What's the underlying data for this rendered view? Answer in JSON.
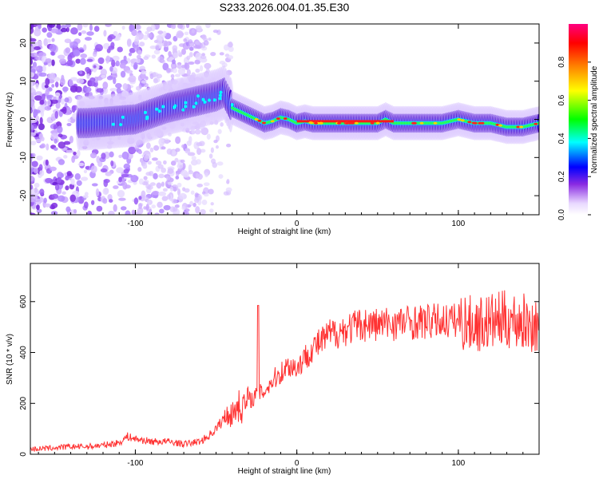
{
  "title": "S233.2026.004.01.35.E30",
  "chart_data": [
    {
      "type": "heatmap",
      "xlabel": "Height of straight line (km)",
      "ylabel": "Frequency (Hz)",
      "xlim": [
        -165,
        150
      ],
      "ylim": [
        -25,
        25
      ],
      "x_ticks": [
        -100,
        0,
        100
      ],
      "y_ticks": [
        -20,
        -10,
        0,
        10,
        20
      ],
      "colorbar": {
        "label": "Normalized spectral amplitude",
        "range": [
          0,
          1
        ],
        "ticks": [
          "0.0",
          "0.2",
          "0.4",
          "0.6",
          "0.8"
        ],
        "ticks_values": [
          0,
          0.2,
          0.4,
          0.6,
          0.8
        ],
        "colors": [
          "#ffffff",
          "#8a2be2",
          "#0000ff",
          "#00ffff",
          "#00ff00",
          "#ffff00",
          "#ff8000",
          "#ff0000",
          "#ff0080"
        ]
      },
      "ridge": {
        "x": [
          -130,
          -115,
          -100,
          -90,
          -80,
          -70,
          -60,
          -50,
          -45,
          -40,
          -35,
          -30,
          -25,
          -20,
          -15,
          -10,
          -5,
          0,
          5,
          10,
          20,
          30,
          40,
          50,
          55,
          60,
          70,
          80,
          90,
          100,
          110,
          120,
          130,
          140,
          150
        ],
        "y": [
          -1,
          -0.5,
          0,
          1.5,
          3,
          4,
          5,
          6,
          7,
          3,
          2,
          1,
          0,
          -1,
          -0.5,
          0.5,
          0,
          -1,
          -0.5,
          -1,
          -1,
          -1,
          -1,
          -1,
          0,
          -1,
          -1,
          -1,
          -1,
          0,
          -1,
          -1,
          -2,
          -2,
          -1
        ]
      }
    },
    {
      "type": "line",
      "xlabel": "Height of straight line (km)",
      "ylabel": "SNR (10 * v/v)",
      "xlim": [
        -165,
        150
      ],
      "ylim": [
        0,
        750
      ],
      "x_ticks": [
        -100,
        0,
        100
      ],
      "y_ticks": [
        0,
        200,
        400,
        600
      ],
      "color": "#ff3333",
      "series": [
        {
          "x": [
            -165,
            -150,
            -140,
            -130,
            -120,
            -110,
            -105,
            -100,
            -90,
            -80,
            -70,
            -60,
            -55,
            -50,
            -45,
            -42,
            -40,
            -37,
            -35,
            -30,
            -25,
            -20,
            -15,
            -10,
            -5,
            0,
            5,
            10,
            15,
            20,
            25,
            30,
            40,
            50,
            60,
            70,
            80,
            90,
            100,
            110,
            120,
            130,
            140,
            150
          ],
          "y": [
            20,
            25,
            30,
            30,
            35,
            45,
            70,
            60,
            50,
            50,
            40,
            50,
            70,
            100,
            140,
            170,
            150,
            200,
            180,
            210,
            230,
            250,
            290,
            320,
            350,
            340,
            380,
            420,
            440,
            470,
            480,
            490,
            510,
            510,
            515,
            520,
            520,
            525,
            525,
            510,
            520,
            530,
            520,
            500
          ]
        }
      ]
    }
  ]
}
